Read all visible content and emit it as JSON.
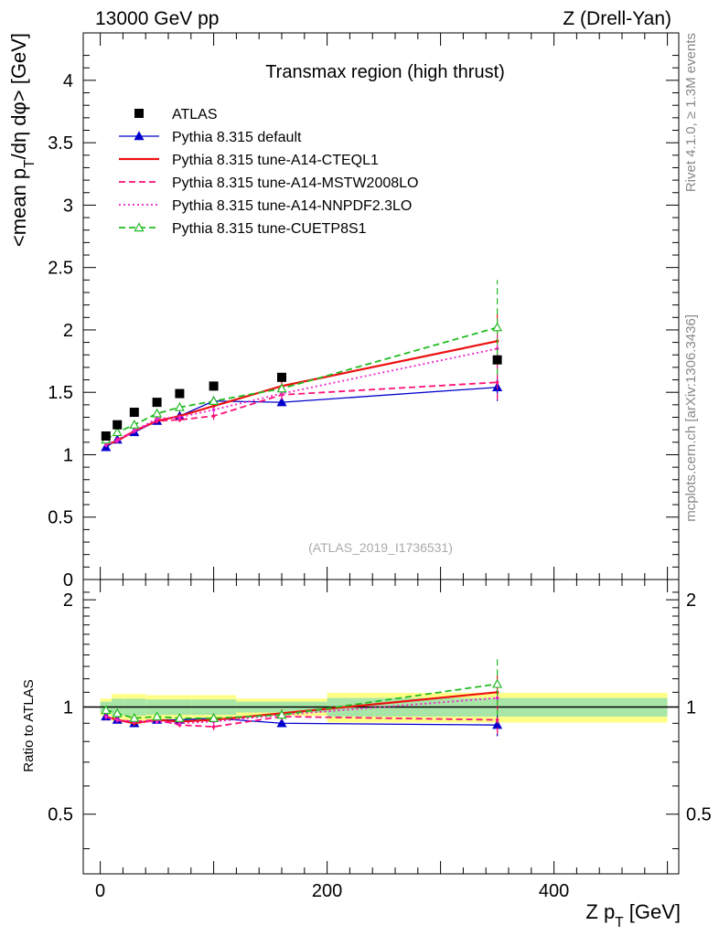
{
  "header": {
    "energy": "13000 GeV pp",
    "process": "Z (Drell-Yan)",
    "side_label": "Rivet 4.1.0, ≥ 1.3M events",
    "side_label2": "mcplots.cern.ch [arXiv:1306.3436]"
  },
  "chart_data": {
    "type": "line",
    "title": "Transmax region (high thrust)",
    "analysis_id": "(ATLAS_2019_I1736531)",
    "xlabel": "Z p_T [GeV]",
    "ylabel": "<mean p_T/dη dφ> [GeV]",
    "ratio_ylabel": "Ratio to ATLAS",
    "xlim": [
      -15,
      510
    ],
    "ylim": [
      0,
      4.38
    ],
    "ratio_ylim": [
      0.34,
      2.28
    ],
    "x_ticks": [
      0,
      200,
      400
    ],
    "y_ticks": [
      0,
      0.5,
      1,
      1.5,
      2,
      2.5,
      3,
      3.5,
      4
    ],
    "ratio_y_ticks": [
      0.5,
      1,
      2
    ],
    "x": [
      5,
      15,
      30,
      50,
      70,
      100,
      160,
      350
    ],
    "data": {
      "name": "ATLAS",
      "values": [
        1.15,
        1.24,
        1.34,
        1.42,
        1.49,
        1.55,
        1.62,
        1.76
      ],
      "band_edges": [
        0,
        10,
        20,
        40,
        60,
        80,
        120,
        200,
        500
      ]
    },
    "series": [
      {
        "name": "Pythia 8.315 default",
        "color": "#0000cc",
        "style": "solid",
        "marker": "triangle-filled",
        "values": [
          1.06,
          1.12,
          1.18,
          1.27,
          1.31,
          1.43,
          1.42,
          1.54
        ],
        "ratio": [
          0.94,
          0.92,
          0.9,
          0.92,
          0.92,
          0.93,
          0.9,
          0.89
        ],
        "err": [
          0.02,
          0.02,
          0.02,
          0.02,
          0.02,
          0.03,
          0.03,
          0.11
        ]
      },
      {
        "name": "Pythia 8.315 tune-A14-CTEQL1",
        "color": "#ee1111",
        "style": "solid",
        "marker": "none",
        "values": [
          1.08,
          1.11,
          1.19,
          1.27,
          1.31,
          1.39,
          1.55,
          1.91
        ],
        "ratio": [
          0.94,
          0.92,
          0.9,
          0.92,
          0.91,
          0.92,
          0.96,
          1.1
        ],
        "err": [
          0.02,
          0.02,
          0.02,
          0.02,
          0.02,
          0.03,
          0.04,
          0.22
        ]
      },
      {
        "name": "Pythia 8.315 tune-A14-MSTW2008LO",
        "color": "#ff1177",
        "style": "dashed",
        "marker": "none",
        "values": [
          1.08,
          1.12,
          1.19,
          1.27,
          1.28,
          1.31,
          1.48,
          1.58
        ],
        "ratio": [
          0.94,
          0.92,
          0.91,
          0.92,
          0.89,
          0.88,
          0.94,
          0.92
        ],
        "err": [
          0.02,
          0.02,
          0.02,
          0.02,
          0.02,
          0.03,
          0.04,
          0.14
        ]
      },
      {
        "name": "Pythia 8.315 tune-A14-NNPDF2.3LO",
        "color": "#ee22cc",
        "style": "dotted",
        "marker": "none",
        "values": [
          1.08,
          1.11,
          1.19,
          1.29,
          1.3,
          1.36,
          1.49,
          1.85
        ],
        "ratio": [
          0.94,
          0.92,
          0.91,
          0.91,
          0.9,
          0.91,
          0.95,
          1.06
        ],
        "err": [
          0.02,
          0.02,
          0.02,
          0.02,
          0.02,
          0.03,
          0.04,
          0.2
        ]
      },
      {
        "name": "Pythia 8.315 tune-CUETP8S1",
        "color": "#22bb22",
        "style": "dashed",
        "marker": "triangle-open",
        "values": [
          1.12,
          1.18,
          1.24,
          1.33,
          1.38,
          1.43,
          1.53,
          2.02
        ],
        "ratio": [
          0.98,
          0.96,
          0.93,
          0.94,
          0.93,
          0.93,
          0.95,
          1.16
        ],
        "err": [
          0.02,
          0.02,
          0.02,
          0.02,
          0.02,
          0.03,
          0.04,
          0.38
        ]
      }
    ]
  }
}
